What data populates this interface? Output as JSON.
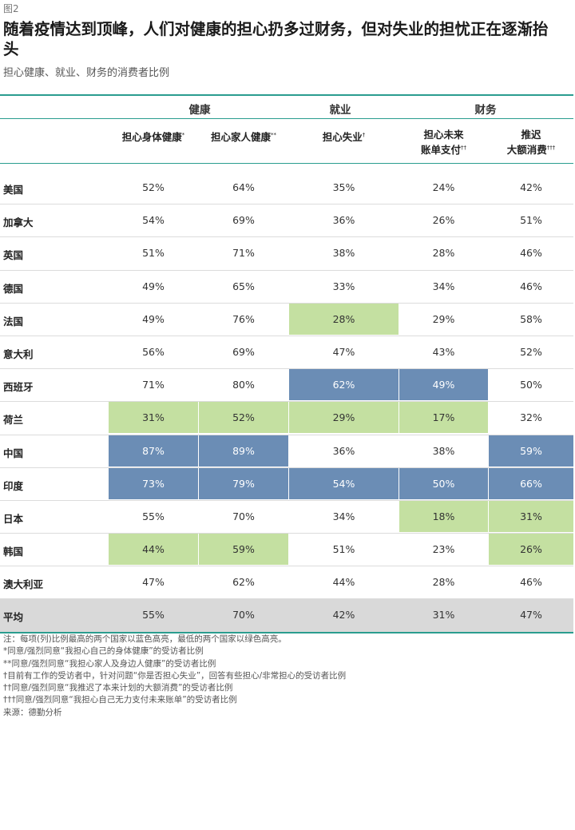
{
  "figure_label": "图2",
  "title": "随着疫情达到顶峰，人们对健康的担心扔多过财务，但对失业的担忧正在逐渐抬头",
  "subtitle": "担心健康、就业、财务的消费者比例",
  "chart_data": {
    "type": "table",
    "groups": [
      {
        "label": "健康",
        "columns": [
          0,
          1
        ]
      },
      {
        "label": "就业",
        "columns": [
          2
        ]
      },
      {
        "label": "财务",
        "columns": [
          3,
          4
        ]
      }
    ],
    "columns": [
      {
        "label": "担心身体健康",
        "mark": "*"
      },
      {
        "label": "担心家人健康",
        "mark": "**"
      },
      {
        "label": "担心失业",
        "mark": "†"
      },
      {
        "label": "担心未来\n账单支付",
        "mark": "††"
      },
      {
        "label": "推迟\n大额消费",
        "mark": "†††"
      }
    ],
    "rows": [
      {
        "country": "美国",
        "values": [
          "52%",
          "64%",
          "35%",
          "24%",
          "42%"
        ],
        "highlight": [
          "",
          "",
          "",
          "",
          ""
        ]
      },
      {
        "country": "加拿大",
        "values": [
          "54%",
          "69%",
          "36%",
          "26%",
          "51%"
        ],
        "highlight": [
          "",
          "",
          "",
          "",
          ""
        ]
      },
      {
        "country": "英国",
        "values": [
          "51%",
          "71%",
          "38%",
          "28%",
          "46%"
        ],
        "highlight": [
          "",
          "",
          "",
          "",
          ""
        ]
      },
      {
        "country": "德国",
        "values": [
          "49%",
          "65%",
          "33%",
          "34%",
          "46%"
        ],
        "highlight": [
          "",
          "",
          "",
          "",
          ""
        ]
      },
      {
        "country": "法国",
        "values": [
          "49%",
          "76%",
          "28%",
          "29%",
          "58%"
        ],
        "highlight": [
          "",
          "",
          "green",
          "",
          ""
        ]
      },
      {
        "country": "意大利",
        "values": [
          "56%",
          "69%",
          "47%",
          "43%",
          "52%"
        ],
        "highlight": [
          "",
          "",
          "",
          "",
          ""
        ]
      },
      {
        "country": "西班牙",
        "values": [
          "71%",
          "80%",
          "62%",
          "49%",
          "50%"
        ],
        "highlight": [
          "",
          "",
          "blue",
          "blue",
          ""
        ]
      },
      {
        "country": "荷兰",
        "values": [
          "31%",
          "52%",
          "29%",
          "17%",
          "32%"
        ],
        "highlight": [
          "green",
          "green",
          "green",
          "green",
          ""
        ]
      },
      {
        "country": "中国",
        "values": [
          "87%",
          "89%",
          "36%",
          "38%",
          "59%"
        ],
        "highlight": [
          "blue",
          "blue",
          "",
          "",
          "blue"
        ]
      },
      {
        "country": "印度",
        "values": [
          "73%",
          "79%",
          "54%",
          "50%",
          "66%"
        ],
        "highlight": [
          "blue",
          "blue",
          "blue",
          "blue",
          "blue"
        ]
      },
      {
        "country": "日本",
        "values": [
          "55%",
          "70%",
          "34%",
          "18%",
          "31%"
        ],
        "highlight": [
          "",
          "",
          "",
          "green",
          "green"
        ]
      },
      {
        "country": "韩国",
        "values": [
          "44%",
          "59%",
          "51%",
          "23%",
          "26%"
        ],
        "highlight": [
          "green",
          "green",
          "",
          "",
          "green"
        ]
      },
      {
        "country": "澳大利亚",
        "values": [
          "47%",
          "62%",
          "44%",
          "28%",
          "46%"
        ],
        "highlight": [
          "",
          "",
          "",
          "",
          ""
        ]
      }
    ],
    "average": {
      "country": "平均",
      "values": [
        "55%",
        "70%",
        "42%",
        "31%",
        "47%"
      ]
    },
    "colors": {
      "blue": "#6b8db5",
      "green": "#c4e0a1",
      "rule": "#2a9d8f",
      "average_bg": "#d9d9d9"
    }
  },
  "notes": [
    "注：每项(列)比例最高的两个国家以蓝色高亮，最低的两个国家以绿色高亮。",
    "*同意/强烈同意“我担心自己的身体健康”的受访者比例",
    "**同意/强烈同意“我担心家人及身边人健康”的受访者比例",
    "†目前有工作的受访者中，针对问题“你是否担心失业”，回答有些担心/非常担心的受访者比例",
    "††同意/强烈同意“我推迟了本来计划的大额消费”的受访者比例",
    "†††同意/强烈同意“我担心自己无力支付未来账单”的受访者比例",
    "来源：德勤分析"
  ]
}
